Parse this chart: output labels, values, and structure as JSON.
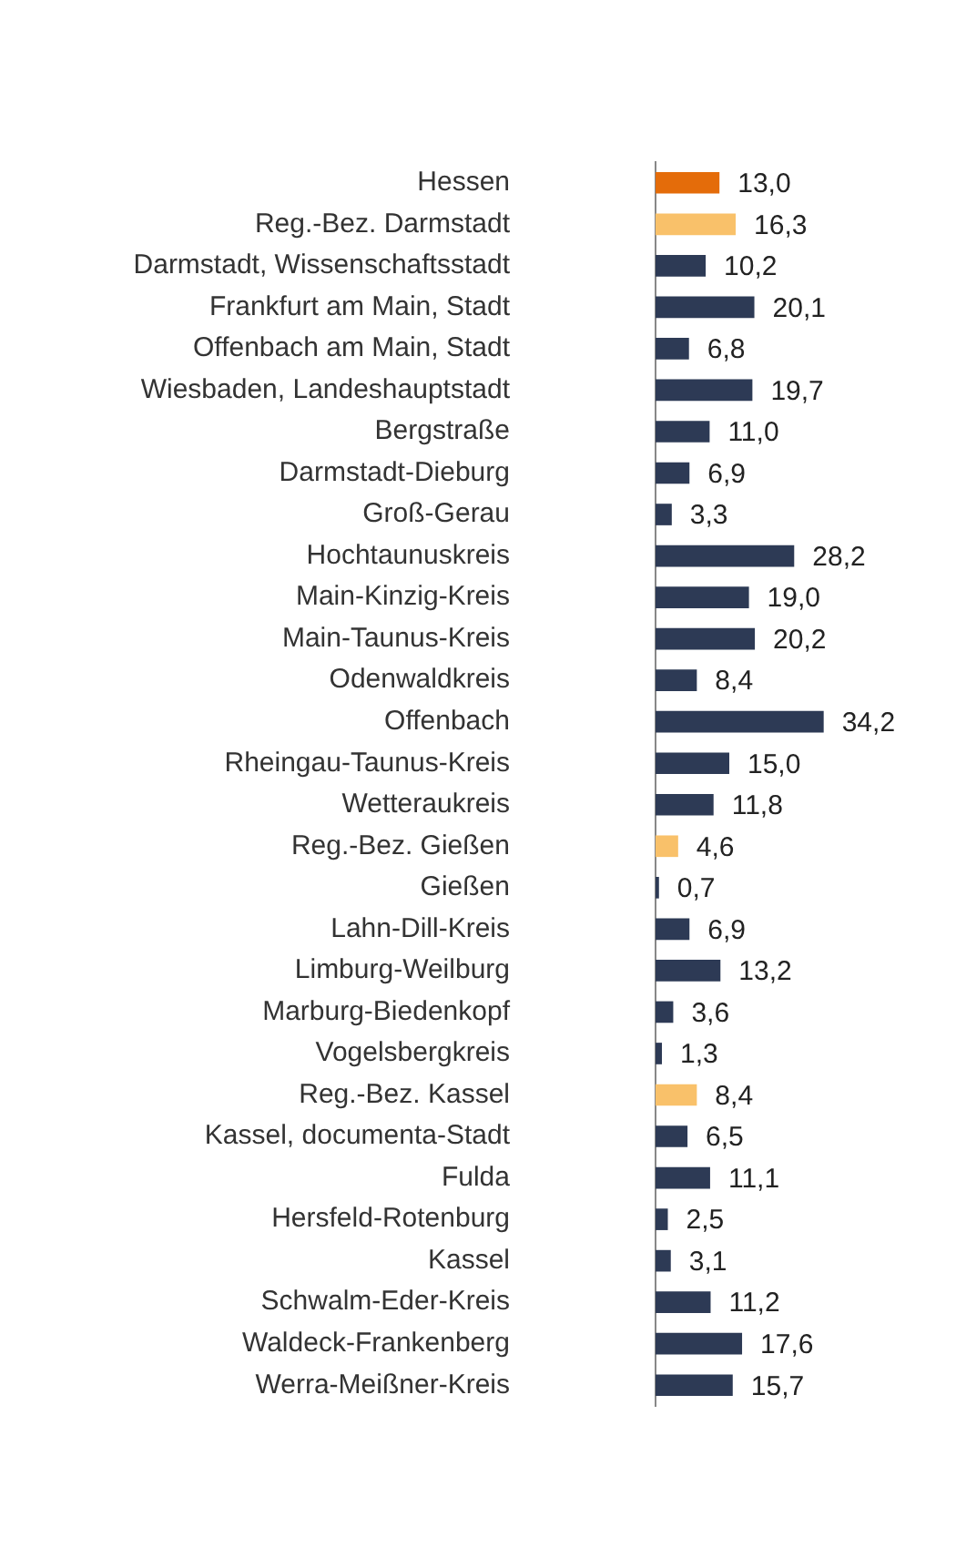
{
  "chart_data": {
    "type": "bar",
    "orientation": "horizontal",
    "categories": [
      "Hessen",
      "Reg.-Bez. Darmstadt",
      "Darmstadt, Wissenschaftsstadt",
      "Frankfurt am Main, Stadt",
      "Offenbach am Main, Stadt",
      "Wiesbaden, Landeshauptstadt",
      "Bergstraße",
      "Darmstadt-Dieburg",
      "Groß-Gerau",
      "Hochtaunuskreis",
      "Main-Kinzig-Kreis",
      "Main-Taunus-Kreis",
      "Odenwaldkreis",
      "Offenbach",
      "Rheingau-Taunus-Kreis",
      "Wetteraukreis",
      "Reg.-Bez. Gießen",
      "Gießen",
      "Lahn-Dill-Kreis",
      "Limburg-Weilburg",
      "Marburg-Biedenkopf",
      "Vogelsbergkreis",
      "Reg.-Bez. Kassel",
      "Kassel, documenta-Stadt",
      "Fulda",
      "Hersfeld-Rotenburg",
      "Kassel",
      "Schwalm-Eder-Kreis",
      "Waldeck-Frankenberg",
      "Werra-Meißner-Kreis"
    ],
    "values": [
      13.0,
      16.3,
      10.2,
      20.1,
      6.8,
      19.7,
      11.0,
      6.9,
      3.3,
      28.2,
      19.0,
      20.2,
      8.4,
      34.2,
      15.0,
      11.8,
      4.6,
      0.7,
      6.9,
      13.2,
      3.6,
      1.3,
      8.4,
      6.5,
      11.1,
      2.5,
      3.1,
      11.2,
      17.6,
      15.7
    ],
    "colors": [
      "#e46c0a",
      "#f9c16a",
      "#2d3a55",
      "#2d3a55",
      "#2d3a55",
      "#2d3a55",
      "#2d3a55",
      "#2d3a55",
      "#2d3a55",
      "#2d3a55",
      "#2d3a55",
      "#2d3a55",
      "#2d3a55",
      "#2d3a55",
      "#2d3a55",
      "#2d3a55",
      "#f9c16a",
      "#2d3a55",
      "#2d3a55",
      "#2d3a55",
      "#2d3a55",
      "#2d3a55",
      "#f9c16a",
      "#2d3a55",
      "#2d3a55",
      "#2d3a55",
      "#2d3a55",
      "#2d3a55",
      "#2d3a55",
      "#2d3a55"
    ],
    "value_labels": [
      "13,0",
      "16,3",
      "10,2",
      "20,1",
      "6,8",
      "19,7",
      "11,0",
      "6,9",
      "3,3",
      "28,2",
      "19,0",
      "20,2",
      "8,4",
      "34,2",
      "15,0",
      "11,8",
      "4,6",
      "0,7",
      "6,9",
      "13,2",
      "3,6",
      "1,3",
      "8,4",
      "6,5",
      "11,1",
      "2,5",
      "3,1",
      "11,2",
      "17,6",
      "15,7"
    ],
    "tick_labels": "y",
    "grid": false,
    "legend": false
  }
}
